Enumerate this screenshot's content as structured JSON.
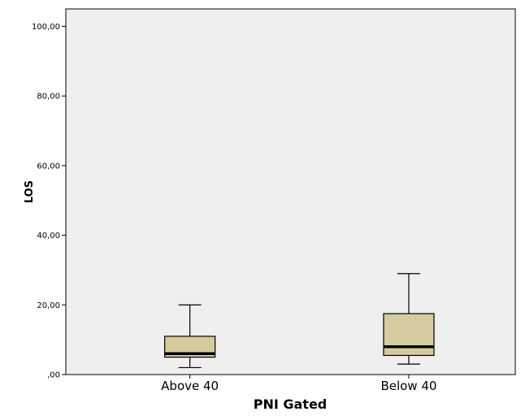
{
  "chart_data": {
    "type": "boxplot",
    "title": "",
    "xlabel": "PNI Gated",
    "ylabel": "LOS",
    "categories": [
      "Above 40",
      "Below 40"
    ],
    "ylim": [
      0,
      105
    ],
    "yticks": [
      0,
      20,
      40,
      60,
      80,
      100
    ],
    "ytick_labels": [
      ",00",
      "20,00",
      "40,00",
      "60,00",
      "80,00",
      "100,00"
    ],
    "boxes": [
      {
        "category": "Above 40",
        "whisker_low": 2,
        "q1": 5,
        "median": 6,
        "q3": 11,
        "whisker_high": 20
      },
      {
        "category": "Below 40",
        "whisker_low": 3,
        "q1": 5.5,
        "median": 8,
        "q3": 17.5,
        "whisker_high": 29
      }
    ],
    "grid": false,
    "colors": {
      "box_fill": "#d4cc9e",
      "plot_background": "#efefef",
      "line": "#000000"
    }
  }
}
